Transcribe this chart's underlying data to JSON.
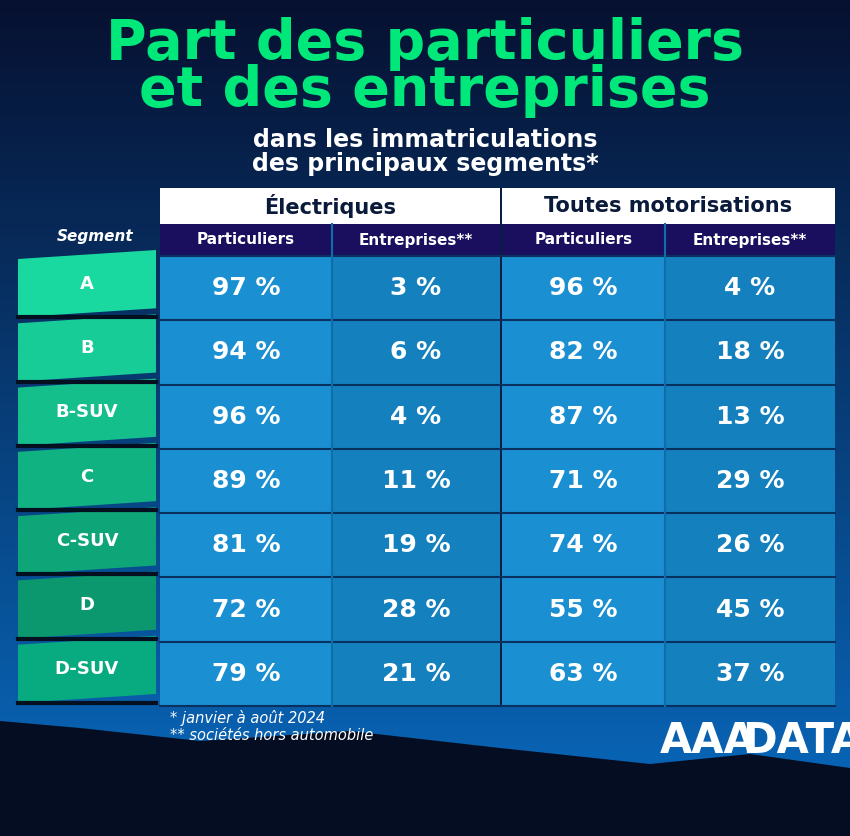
{
  "title_line1": "Part des particuliers",
  "title_line2": "et des entreprises",
  "subtitle_line1": "dans les immatriculations",
  "subtitle_line2": "des principaux segments*",
  "col_group1": "Électriques",
  "col_group2": "Toutes motorisations",
  "col_sub1": "Particuliers",
  "col_sub2": "Entreprises**",
  "col_sub3": "Particuliers",
  "col_sub4": "Entreprises**",
  "row_label": "Segment",
  "segments": [
    "A",
    "B",
    "B-SUV",
    "C",
    "C-SUV",
    "D",
    "D-SUV"
  ],
  "elec_part": [
    "97 %",
    "94 %",
    "96 %",
    "89 %",
    "81 %",
    "72 %",
    "79 %"
  ],
  "elec_entr": [
    "3 %",
    "6 %",
    "4 %",
    "11 %",
    "19 %",
    "28 %",
    "21 %"
  ],
  "toutes_part": [
    "96 %",
    "82 %",
    "87 %",
    "71 %",
    "74 %",
    "55 %",
    "63 %"
  ],
  "toutes_entr": [
    "4 %",
    "18 %",
    "13 %",
    "29 %",
    "26 %",
    "45 %",
    "37 %"
  ],
  "footnote1": "* janvier à août 2024",
  "footnote2": "** sociétés hors automobile",
  "segment_tab_colors": [
    "#1ad9a0",
    "#17cc96",
    "#14bf8c",
    "#11b282",
    "#0ea578",
    "#0b986e",
    "#08aa80"
  ],
  "title_green": "#00e87a",
  "header_dark": "#1a0f5e",
  "table_blue": "#1a8fd1",
  "col_border": "#0d6eaa",
  "wave_dark": "#050d22",
  "bg_top": "#061030",
  "bg_bottom": "#0a6abf"
}
